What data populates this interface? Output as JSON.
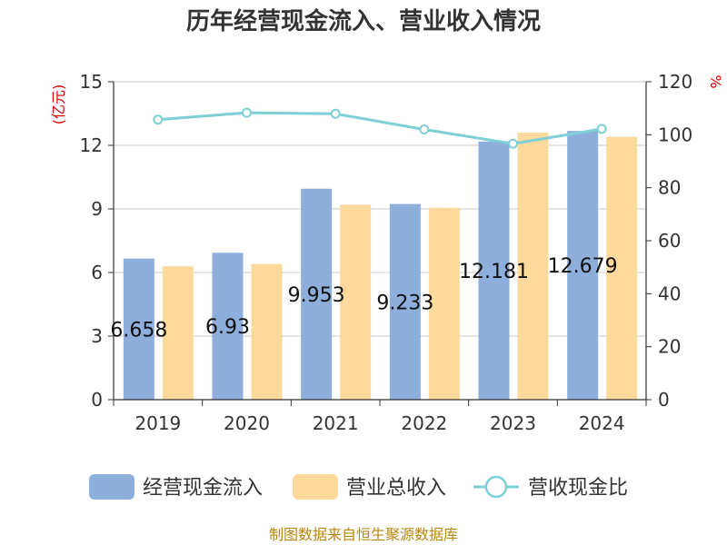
{
  "chart_data": {
    "type": "bar",
    "title": "历年经营现金流入、营业收入情况",
    "categories": [
      "2019",
      "2020",
      "2021",
      "2022",
      "2023",
      "2024"
    ],
    "series": [
      {
        "name": "经营现金流入",
        "type": "bar",
        "axis": "left",
        "color": "#8eaedb",
        "values": [
          6.658,
          6.93,
          9.953,
          9.233,
          12.181,
          12.679
        ]
      },
      {
        "name": "营业总收入",
        "type": "bar",
        "axis": "left",
        "color": "#fdd99b",
        "values": [
          6.3,
          6.4,
          9.2,
          9.05,
          12.6,
          12.4
        ]
      },
      {
        "name": "营收现金比",
        "type": "line",
        "axis": "right",
        "color": "#7fcfd6",
        "values": [
          105.7,
          108.3,
          107.9,
          102.0,
          96.6,
          102.2
        ]
      }
    ],
    "data_labels": [
      "6.658",
      "6.93",
      "9.953",
      "9.233",
      "12.181",
      "12.679"
    ],
    "left_axis": {
      "unit": "(亿元)",
      "min": 0,
      "max": 15,
      "ticks": [
        "0",
        "3",
        "6",
        "9",
        "12",
        "15"
      ]
    },
    "right_axis": {
      "unit": "%",
      "min": 0,
      "max": 120,
      "ticks": [
        "0",
        "20",
        "40",
        "60",
        "80",
        "100",
        "120"
      ]
    },
    "grid": true,
    "legend_position": "bottom"
  },
  "source": "制图数据来自恒生聚源数据库"
}
